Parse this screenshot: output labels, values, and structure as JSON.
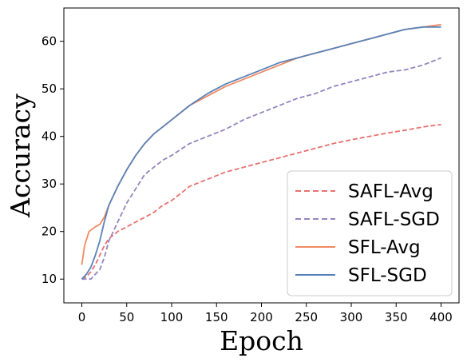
{
  "chart_data": {
    "type": "line",
    "title": "",
    "xlabel": "Epoch",
    "ylabel": "Accuracy",
    "xlim": [
      -20,
      420
    ],
    "ylim": [
      5,
      67
    ],
    "xticks": [
      0,
      50,
      100,
      150,
      200,
      250,
      300,
      350,
      400
    ],
    "yticks": [
      10,
      20,
      30,
      40,
      50,
      60
    ],
    "grid": false,
    "legend_position": "bottom-right",
    "series": [
      {
        "name": "SAFL-Avg",
        "color": "#e8716f",
        "dash": "dashed",
        "x": [
          0,
          5,
          10,
          15,
          20,
          25,
          30,
          40,
          50,
          60,
          70,
          80,
          90,
          100,
          120,
          140,
          160,
          180,
          200,
          220,
          240,
          260,
          280,
          300,
          320,
          340,
          360,
          380,
          400
        ],
        "y": [
          10,
          10.5,
          11.5,
          13,
          15,
          17,
          18.5,
          20,
          21,
          22,
          23,
          24,
          25.5,
          26.5,
          29.5,
          31,
          32.5,
          33.5,
          34.5,
          35.5,
          36.5,
          37.5,
          38.5,
          39.3,
          40,
          40.7,
          41.3,
          42,
          42.5
        ]
      },
      {
        "name": "SAFL-SGD",
        "color": "#9485bf",
        "dash": "dashed",
        "x": [
          0,
          10,
          15,
          20,
          25,
          30,
          40,
          50,
          60,
          70,
          80,
          90,
          100,
          120,
          140,
          160,
          180,
          200,
          220,
          240,
          260,
          280,
          300,
          320,
          340,
          360,
          380,
          400
        ],
        "y": [
          10,
          10,
          11,
          12,
          14.5,
          18,
          22,
          26,
          29,
          32,
          33.5,
          35,
          36,
          38.5,
          40,
          41.5,
          43.5,
          45,
          46.5,
          48,
          49,
          50.5,
          51.5,
          52.5,
          53.5,
          54,
          55,
          56.5
        ]
      },
      {
        "name": "SFL-Avg",
        "color": "#f08a63",
        "dash": "solid",
        "x": [
          0,
          3,
          8,
          15,
          20,
          25,
          30,
          40,
          50,
          60,
          70,
          80,
          90,
          100,
          120,
          140,
          160,
          180,
          200,
          220,
          240,
          260,
          280,
          300,
          320,
          340,
          360,
          380,
          400
        ],
        "y": [
          13,
          17,
          20,
          21,
          21.5,
          23,
          25.5,
          29.5,
          33,
          36,
          38.5,
          40.5,
          42,
          43.5,
          46.5,
          48.5,
          50.5,
          52,
          53.5,
          55,
          56.5,
          57.5,
          58.5,
          59.5,
          60.5,
          61.5,
          62.5,
          63,
          63.5
        ]
      },
      {
        "name": "SFL-SGD",
        "color": "#5a82b8",
        "dash": "solid",
        "x": [
          0,
          5,
          10,
          15,
          20,
          25,
          30,
          40,
          50,
          60,
          70,
          80,
          90,
          100,
          120,
          140,
          160,
          180,
          200,
          220,
          240,
          260,
          280,
          300,
          320,
          340,
          360,
          380,
          400
        ],
        "y": [
          10,
          11,
          12.5,
          15,
          18,
          22,
          25.5,
          29.5,
          33,
          36,
          38.5,
          40.5,
          42,
          43.5,
          46.5,
          49,
          51,
          52.5,
          54,
          55.5,
          56.5,
          57.5,
          58.5,
          59.5,
          60.5,
          61.5,
          62.5,
          63,
          63
        ]
      }
    ]
  }
}
